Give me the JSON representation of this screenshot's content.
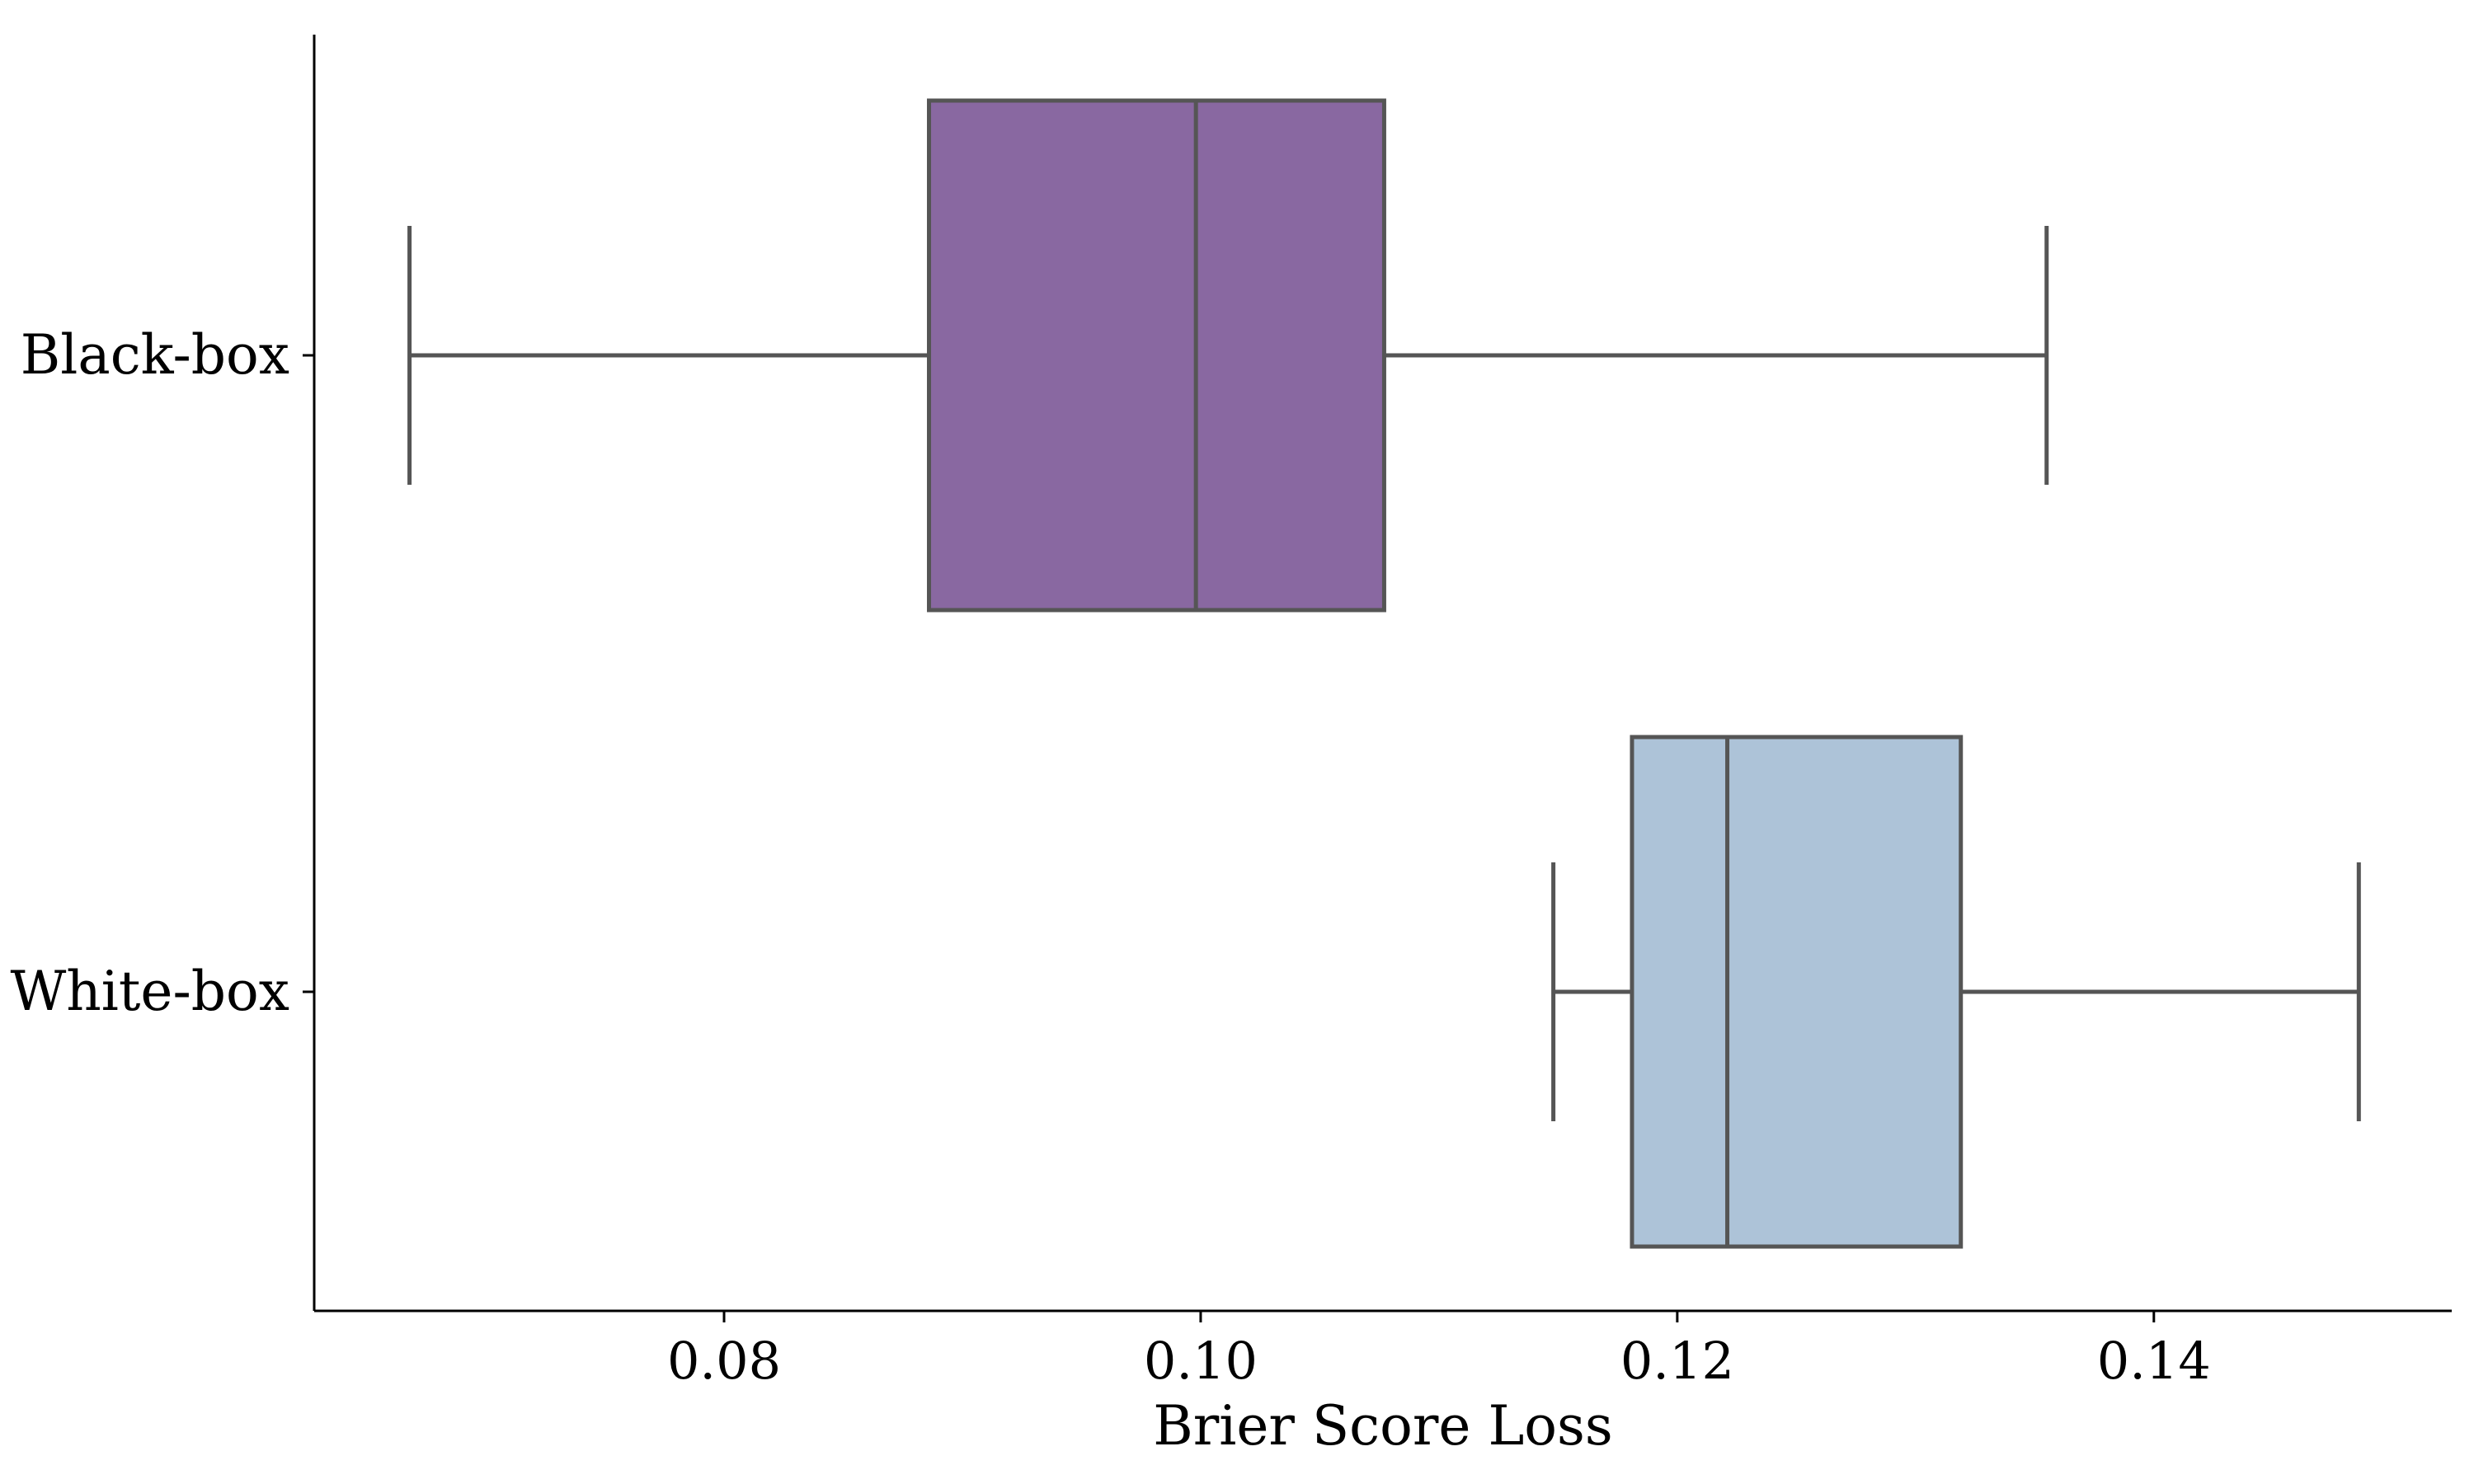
{
  "chart_data": {
    "type": "boxplot",
    "orientation": "horizontal",
    "title": "",
    "xlabel": "Brier Score Loss",
    "ylabel": "",
    "xlim": [
      0.0628,
      0.1525
    ],
    "xticks": [
      0.08,
      0.1,
      0.12,
      0.14
    ],
    "xtick_labels": [
      "0.08",
      "0.10",
      "0.12",
      "0.14"
    ],
    "grid": false,
    "legend": "none",
    "edge_color": "#555555",
    "boxes": [
      {
        "category": "Black-box",
        "color": "#8968a1",
        "whisker_low": 0.0668,
        "q1": 0.0886,
        "median": 0.0998,
        "q3": 0.1077,
        "whisker_high": 0.1355
      },
      {
        "category": "White-box",
        "color": "#adc3d8",
        "whisker_low": 0.1148,
        "q1": 0.1181,
        "median": 0.1221,
        "q3": 0.1319,
        "whisker_high": 0.1486
      }
    ]
  }
}
